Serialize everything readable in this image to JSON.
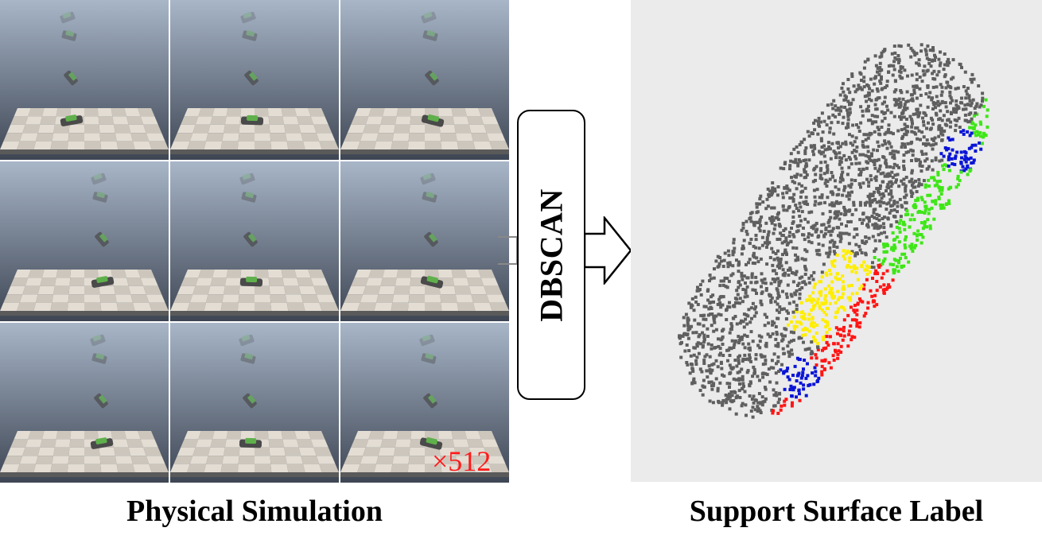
{
  "multiplier": "×512",
  "box_label": "DBSCAN",
  "caption_left": "Physical Simulation",
  "caption_right": "Support Surface Label",
  "colors": {
    "sky_top": "#a8b6c8",
    "sky_bottom": "#3e4654",
    "floor_light": "#e3ddd4",
    "floor_dark": "#cdc6bc",
    "floor_edge": "#5a5a5a",
    "object_green": "#5fb04b",
    "object_dark": "#4a4a4a",
    "pc_background": "#ebebeb",
    "pc_gray": "#5f5f5f",
    "pc_red": "#ff1515",
    "pc_yellow": "#ffee00",
    "pc_green": "#3ee617",
    "pc_blue": "#0a14d6",
    "multiplier_red": "#ff1a1a"
  }
}
